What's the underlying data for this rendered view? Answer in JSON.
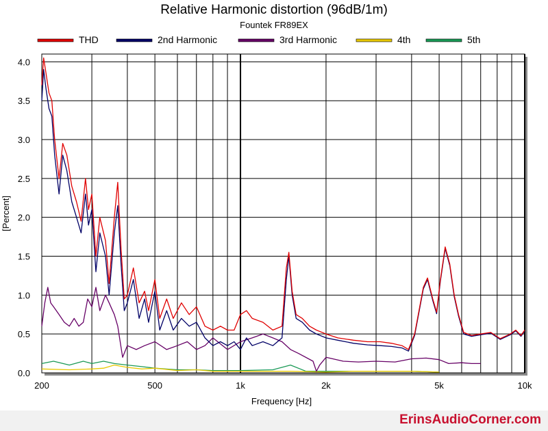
{
  "chart_data": {
    "type": "line",
    "title": "Relative Harmonic distortion (96dB/1m)",
    "subtitle": "Fountek FR89EX",
    "xlabel": "Frequency [Hz]",
    "ylabel": "[Percent]",
    "x_scale": "log",
    "xlim": [
      200,
      10000
    ],
    "ylim": [
      0,
      4.1
    ],
    "x_ticks": [
      200,
      500,
      1000,
      2000,
      5000,
      10000
    ],
    "x_tick_labels": [
      "200",
      "500",
      "1k",
      "2k",
      "5k",
      "10k"
    ],
    "y_ticks": [
      0.0,
      0.5,
      1.0,
      1.5,
      2.0,
      2.5,
      3.0,
      3.5,
      4.0
    ],
    "y_tick_labels": [
      "0.0",
      "0.5",
      "1.0",
      "1.5",
      "2.0",
      "2.5",
      "3.0",
      "3.5",
      "4.0"
    ],
    "grid": true,
    "legend_position": "top",
    "series": [
      {
        "name": "THD",
        "color": "#e00000",
        "points": [
          [
            200,
            3.7
          ],
          [
            203,
            4.05
          ],
          [
            207,
            3.85
          ],
          [
            212,
            3.6
          ],
          [
            217,
            3.5
          ],
          [
            222,
            3.0
          ],
          [
            230,
            2.5
          ],
          [
            237,
            2.95
          ],
          [
            245,
            2.8
          ],
          [
            255,
            2.4
          ],
          [
            265,
            2.2
          ],
          [
            275,
            1.95
          ],
          [
            285,
            2.5
          ],
          [
            292,
            2.1
          ],
          [
            300,
            2.3
          ],
          [
            310,
            1.5
          ],
          [
            320,
            2.0
          ],
          [
            335,
            1.7
          ],
          [
            345,
            1.15
          ],
          [
            360,
            2.0
          ],
          [
            370,
            2.45
          ],
          [
            380,
            1.6
          ],
          [
            390,
            0.95
          ],
          [
            400,
            1.0
          ],
          [
            420,
            1.35
          ],
          [
            440,
            0.9
          ],
          [
            460,
            1.05
          ],
          [
            475,
            0.8
          ],
          [
            500,
            1.2
          ],
          [
            520,
            0.7
          ],
          [
            550,
            0.95
          ],
          [
            580,
            0.7
          ],
          [
            620,
            0.9
          ],
          [
            660,
            0.75
          ],
          [
            700,
            0.85
          ],
          [
            750,
            0.6
          ],
          [
            800,
            0.55
          ],
          [
            850,
            0.6
          ],
          [
            900,
            0.55
          ],
          [
            950,
            0.55
          ],
          [
            1000,
            0.75
          ],
          [
            1050,
            0.8
          ],
          [
            1100,
            0.7
          ],
          [
            1200,
            0.65
          ],
          [
            1300,
            0.55
          ],
          [
            1400,
            0.6
          ],
          [
            1450,
            1.35
          ],
          [
            1480,
            1.55
          ],
          [
            1520,
            1.05
          ],
          [
            1570,
            0.75
          ],
          [
            1650,
            0.7
          ],
          [
            1750,
            0.6
          ],
          [
            1850,
            0.55
          ],
          [
            2000,
            0.5
          ],
          [
            2200,
            0.45
          ],
          [
            2500,
            0.42
          ],
          [
            2800,
            0.4
          ],
          [
            3100,
            0.4
          ],
          [
            3400,
            0.38
          ],
          [
            3700,
            0.35
          ],
          [
            3900,
            0.3
          ],
          [
            4100,
            0.5
          ],
          [
            4400,
            1.1
          ],
          [
            4550,
            1.22
          ],
          [
            4750,
            0.95
          ],
          [
            4900,
            0.78
          ],
          [
            5050,
            1.2
          ],
          [
            5250,
            1.62
          ],
          [
            5450,
            1.4
          ],
          [
            5650,
            1.0
          ],
          [
            5850,
            0.75
          ],
          [
            6100,
            0.52
          ],
          [
            6500,
            0.48
          ],
          [
            7000,
            0.5
          ],
          [
            7600,
            0.52
          ],
          [
            8200,
            0.44
          ],
          [
            8900,
            0.5
          ],
          [
            9300,
            0.55
          ],
          [
            9700,
            0.48
          ],
          [
            10000,
            0.55
          ]
        ]
      },
      {
        "name": "2nd Harmonic",
        "color": "#000066",
        "points": [
          [
            200,
            3.5
          ],
          [
            203,
            3.9
          ],
          [
            207,
            3.65
          ],
          [
            212,
            3.4
          ],
          [
            217,
            3.3
          ],
          [
            222,
            2.8
          ],
          [
            230,
            2.3
          ],
          [
            237,
            2.8
          ],
          [
            245,
            2.6
          ],
          [
            255,
            2.2
          ],
          [
            265,
            2.0
          ],
          [
            275,
            1.8
          ],
          [
            285,
            2.3
          ],
          [
            292,
            1.9
          ],
          [
            300,
            2.1
          ],
          [
            310,
            1.3
          ],
          [
            320,
            1.8
          ],
          [
            335,
            1.5
          ],
          [
            345,
            1.0
          ],
          [
            360,
            1.8
          ],
          [
            370,
            2.15
          ],
          [
            380,
            1.4
          ],
          [
            390,
            0.8
          ],
          [
            400,
            0.9
          ],
          [
            420,
            1.2
          ],
          [
            440,
            0.7
          ],
          [
            460,
            0.95
          ],
          [
            475,
            0.65
          ],
          [
            500,
            1.05
          ],
          [
            520,
            0.55
          ],
          [
            550,
            0.8
          ],
          [
            580,
            0.55
          ],
          [
            620,
            0.7
          ],
          [
            660,
            0.6
          ],
          [
            700,
            0.65
          ],
          [
            750,
            0.45
          ],
          [
            800,
            0.35
          ],
          [
            850,
            0.4
          ],
          [
            900,
            0.35
          ],
          [
            950,
            0.4
          ],
          [
            1000,
            0.3
          ],
          [
            1050,
            0.45
          ],
          [
            1100,
            0.35
          ],
          [
            1200,
            0.4
          ],
          [
            1300,
            0.35
          ],
          [
            1400,
            0.45
          ],
          [
            1450,
            1.2
          ],
          [
            1480,
            1.5
          ],
          [
            1520,
            1.0
          ],
          [
            1570,
            0.7
          ],
          [
            1650,
            0.65
          ],
          [
            1750,
            0.55
          ],
          [
            1850,
            0.5
          ],
          [
            2000,
            0.45
          ],
          [
            2200,
            0.42
          ],
          [
            2500,
            0.38
          ],
          [
            2800,
            0.36
          ],
          [
            3100,
            0.35
          ],
          [
            3400,
            0.34
          ],
          [
            3700,
            0.32
          ],
          [
            3900,
            0.28
          ],
          [
            4100,
            0.48
          ],
          [
            4400,
            1.08
          ],
          [
            4550,
            1.2
          ],
          [
            4750,
            0.93
          ],
          [
            4900,
            0.76
          ],
          [
            5050,
            1.18
          ],
          [
            5250,
            1.6
          ],
          [
            5450,
            1.38
          ],
          [
            5650,
            0.98
          ],
          [
            5850,
            0.73
          ],
          [
            6100,
            0.5
          ],
          [
            6500,
            0.47
          ],
          [
            7000,
            0.49
          ],
          [
            7600,
            0.51
          ],
          [
            8200,
            0.43
          ],
          [
            8900,
            0.49
          ],
          [
            9300,
            0.54
          ],
          [
            9700,
            0.47
          ],
          [
            10000,
            0.54
          ]
        ]
      },
      {
        "name": "3rd Harmonic",
        "color": "#660066",
        "points": [
          [
            200,
            0.6
          ],
          [
            205,
            0.9
          ],
          [
            210,
            1.1
          ],
          [
            215,
            0.9
          ],
          [
            220,
            0.85
          ],
          [
            230,
            0.75
          ],
          [
            240,
            0.65
          ],
          [
            250,
            0.6
          ],
          [
            260,
            0.7
          ],
          [
            270,
            0.6
          ],
          [
            280,
            0.65
          ],
          [
            290,
            0.95
          ],
          [
            300,
            0.85
          ],
          [
            310,
            1.1
          ],
          [
            320,
            0.8
          ],
          [
            335,
            1.0
          ],
          [
            345,
            0.9
          ],
          [
            360,
            0.75
          ],
          [
            370,
            0.6
          ],
          [
            385,
            0.2
          ],
          [
            400,
            0.35
          ],
          [
            430,
            0.3
          ],
          [
            460,
            0.35
          ],
          [
            500,
            0.4
          ],
          [
            550,
            0.3
          ],
          [
            600,
            0.35
          ],
          [
            650,
            0.4
          ],
          [
            700,
            0.3
          ],
          [
            750,
            0.35
          ],
          [
            800,
            0.45
          ],
          [
            900,
            0.3
          ],
          [
            1000,
            0.4
          ],
          [
            1100,
            0.45
          ],
          [
            1200,
            0.5
          ],
          [
            1300,
            0.45
          ],
          [
            1400,
            0.4
          ],
          [
            1500,
            0.3
          ],
          [
            1600,
            0.25
          ],
          [
            1800,
            0.15
          ],
          [
            1850,
            0.02
          ],
          [
            1900,
            0.1
          ],
          [
            2000,
            0.2
          ],
          [
            2300,
            0.15
          ],
          [
            2600,
            0.14
          ],
          [
            3000,
            0.15
          ],
          [
            3500,
            0.14
          ],
          [
            4000,
            0.18
          ],
          [
            4500,
            0.19
          ],
          [
            5000,
            0.17
          ],
          [
            5400,
            0.12
          ],
          [
            6000,
            0.13
          ],
          [
            6500,
            0.12
          ],
          [
            7000,
            0.12
          ]
        ]
      },
      {
        "name": "4th",
        "color": "#e8c800",
        "points": [
          [
            200,
            0.05
          ],
          [
            250,
            0.04
          ],
          [
            300,
            0.05
          ],
          [
            330,
            0.06
          ],
          [
            360,
            0.1
          ],
          [
            400,
            0.07
          ],
          [
            450,
            0.05
          ],
          [
            500,
            0.06
          ],
          [
            600,
            0.03
          ],
          [
            700,
            0.04
          ],
          [
            800,
            0.02
          ],
          [
            1000,
            0.02
          ],
          [
            1200,
            0.02
          ],
          [
            1500,
            0.02
          ],
          [
            2000,
            0.01
          ],
          [
            2500,
            0.02
          ],
          [
            3000,
            0.02
          ],
          [
            4000,
            0.02
          ],
          [
            5000,
            0.01
          ]
        ]
      },
      {
        "name": "5th",
        "color": "#1a9955",
        "points": [
          [
            200,
            0.12
          ],
          [
            220,
            0.15
          ],
          [
            250,
            0.1
          ],
          [
            280,
            0.15
          ],
          [
            300,
            0.12
          ],
          [
            330,
            0.15
          ],
          [
            360,
            0.12
          ],
          [
            400,
            0.1
          ],
          [
            450,
            0.08
          ],
          [
            500,
            0.06
          ],
          [
            600,
            0.04
          ],
          [
            700,
            0.04
          ],
          [
            800,
            0.03
          ],
          [
            1000,
            0.03
          ],
          [
            1300,
            0.04
          ],
          [
            1500,
            0.1
          ],
          [
            1700,
            0.02
          ],
          [
            2000,
            0.02
          ],
          [
            3000,
            0.02
          ],
          [
            4000,
            0.02
          ],
          [
            5000,
            0.01
          ]
        ]
      }
    ]
  },
  "watermark": "ErinsAudioCorner.com"
}
